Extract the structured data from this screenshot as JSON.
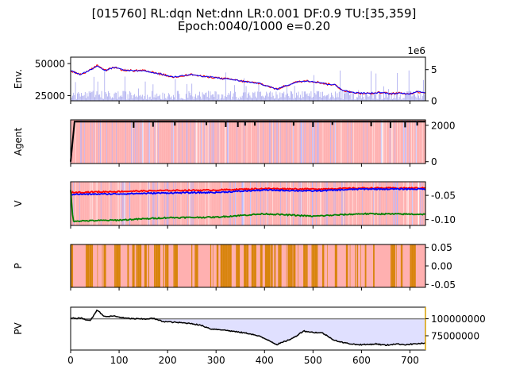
{
  "title": {
    "line1": "[015760] RL:dqn Net:dnn LR:0.001 DF:0.9 TU:[35,359]",
    "line2": "Epoch:0040/1000 e=0.20"
  },
  "colors": {
    "price": "#ff0000",
    "ma": "#0000ff",
    "volume": "#b0b0f0",
    "agent_line": "#000000",
    "action_buy": "#ffb0b0",
    "action_sell": "#b0b0ff",
    "v_a": "#ff0000",
    "v_b": "#0000ff",
    "v_c": "#008000",
    "p_hold": "#ffb0b0",
    "p_explore": "#d8840c",
    "pv_fill": "#e0e0ff",
    "pv_line": "#000000",
    "pv_ref": "#808080"
  },
  "chart_data": [
    {
      "type": "line",
      "ylabel": "Env.",
      "xlim": [
        0,
        732
      ],
      "ylim": [
        21000,
        55000
      ],
      "left_ticks": [
        25000,
        50000
      ],
      "right_ticks": [
        "0",
        "5"
      ],
      "right_multiplier": "1e6",
      "right_ylim": [
        0,
        7000000
      ],
      "price_points": [
        [
          0,
          44500
        ],
        [
          20,
          41500
        ],
        [
          40,
          45000
        ],
        [
          55,
          48500
        ],
        [
          70,
          44500
        ],
        [
          90,
          47000
        ],
        [
          110,
          44800
        ],
        [
          130,
          44500
        ],
        [
          150,
          44500
        ],
        [
          170,
          43000
        ],
        [
          190,
          41500
        ],
        [
          210,
          39500
        ],
        [
          230,
          40500
        ],
        [
          250,
          41500
        ],
        [
          270,
          40000
        ],
        [
          290,
          39500
        ],
        [
          310,
          38500
        ],
        [
          330,
          37800
        ],
        [
          350,
          36500
        ],
        [
          370,
          35500
        ],
        [
          390,
          34500
        ],
        [
          410,
          32000
        ],
        [
          425,
          30000
        ],
        [
          435,
          31500
        ],
        [
          450,
          33500
        ],
        [
          470,
          36000
        ],
        [
          490,
          36500
        ],
        [
          510,
          35500
        ],
        [
          530,
          34000
        ],
        [
          545,
          33500
        ],
        [
          560,
          29500
        ],
        [
          580,
          27500
        ],
        [
          600,
          27000
        ],
        [
          620,
          26800
        ],
        [
          640,
          27500
        ],
        [
          660,
          26500
        ],
        [
          680,
          27000
        ],
        [
          700,
          26500
        ],
        [
          715,
          28000
        ],
        [
          732,
          27500
        ]
      ],
      "volume_note": "daily volume bars on right axis"
    },
    {
      "type": "bar",
      "ylabel": "Agent",
      "xlim": [
        0,
        732
      ],
      "ylim": [
        -100,
        2300
      ],
      "right_ticks": [
        "0",
        "2000"
      ],
      "line_points": [
        [
          0,
          0
        ],
        [
          8,
          2200
        ],
        [
          732,
          2200
        ]
      ],
      "dips_x": [
        130,
        170,
        215,
        280,
        320,
        345,
        360,
        380,
        460,
        500,
        540,
        620,
        660,
        690,
        715
      ]
    },
    {
      "type": "line",
      "ylabel": "V",
      "xlim": [
        0,
        732
      ],
      "ylim": [
        -0.112,
        -0.022
      ],
      "right_ticks": [
        "-0.05",
        "-0.10"
      ],
      "series": [
        {
          "values": [
            [
              0,
              -0.044
            ],
            [
              100,
              -0.042
            ],
            [
              200,
              -0.04
            ],
            [
              300,
              -0.039
            ],
            [
              400,
              -0.036
            ],
            [
              500,
              -0.037
            ],
            [
              600,
              -0.035
            ],
            [
              732,
              -0.035
            ]
          ]
        },
        {
          "values": [
            [
              0,
              -0.048
            ],
            [
              100,
              -0.047
            ],
            [
              200,
              -0.045
            ],
            [
              300,
              -0.044
            ],
            [
              400,
              -0.039
            ],
            [
              500,
              -0.041
            ],
            [
              600,
              -0.037
            ],
            [
              732,
              -0.037
            ]
          ]
        },
        {
          "values": [
            [
              0,
              -0.04
            ],
            [
              5,
              -0.103
            ],
            [
              100,
              -0.101
            ],
            [
              200,
              -0.096
            ],
            [
              300,
              -0.095
            ],
            [
              400,
              -0.088
            ],
            [
              500,
              -0.093
            ],
            [
              600,
              -0.088
            ],
            [
              732,
              -0.089
            ]
          ]
        }
      ]
    },
    {
      "type": "bar",
      "ylabel": "P",
      "xlim": [
        0,
        732
      ],
      "ylim": [
        -0.058,
        0.058
      ],
      "right_ticks": [
        "0.05",
        "0.00",
        "-0.05"
      ]
    },
    {
      "type": "area",
      "ylabel": "PV",
      "xlim": [
        0,
        732
      ],
      "ylim": [
        54000000,
        117000000
      ],
      "reference": 100000000,
      "right_ticks": [
        "100000000",
        "75000000"
      ],
      "x_ticks": [
        "0",
        "100",
        "200",
        "300",
        "400",
        "500",
        "600",
        "700"
      ],
      "points": [
        [
          0,
          100500000
        ],
        [
          20,
          101000000
        ],
        [
          40,
          97000000
        ],
        [
          55,
          113000000
        ],
        [
          70,
          103000000
        ],
        [
          90,
          104000000
        ],
        [
          110,
          101000000
        ],
        [
          130,
          100000000
        ],
        [
          150,
          99500000
        ],
        [
          170,
          100500000
        ],
        [
          190,
          96000000
        ],
        [
          210,
          95000000
        ],
        [
          230,
          94000000
        ],
        [
          250,
          93000000
        ],
        [
          270,
          90000000
        ],
        [
          290,
          85000000
        ],
        [
          310,
          84000000
        ],
        [
          330,
          82000000
        ],
        [
          350,
          80000000
        ],
        [
          370,
          78000000
        ],
        [
          390,
          74000000
        ],
        [
          410,
          68000000
        ],
        [
          425,
          62000000
        ],
        [
          440,
          66000000
        ],
        [
          460,
          72000000
        ],
        [
          480,
          82000000
        ],
        [
          500,
          80000000
        ],
        [
          520,
          79000000
        ],
        [
          540,
          70000000
        ],
        [
          555,
          66000000
        ],
        [
          570,
          64000000
        ],
        [
          590,
          62000000
        ],
        [
          610,
          62000000
        ],
        [
          630,
          63000000
        ],
        [
          650,
          61000000
        ],
        [
          670,
          63000000
        ],
        [
          690,
          62000000
        ],
        [
          710,
          63000000
        ],
        [
          732,
          64000000
        ]
      ]
    }
  ]
}
